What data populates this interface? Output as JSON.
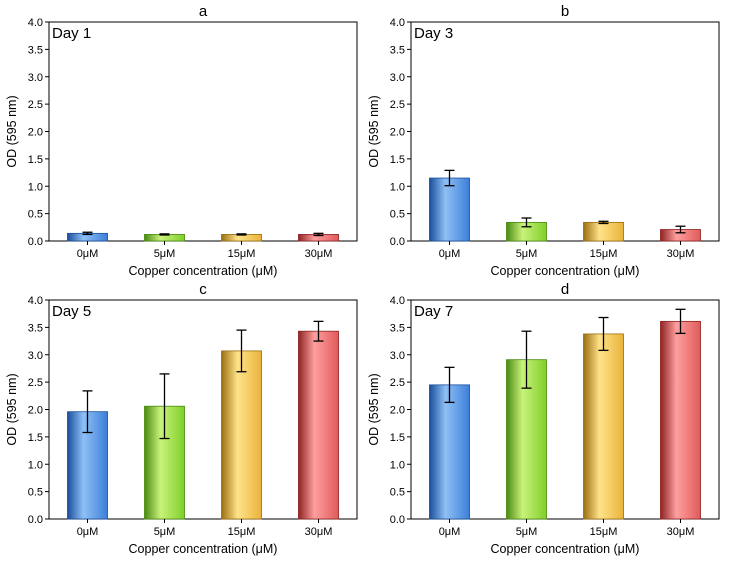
{
  "chart_data": [
    {
      "type": "bar",
      "panel": "a",
      "day_label": "Day 1",
      "categories": [
        "0μM",
        "5μM",
        "15μM",
        "30μM"
      ],
      "values": [
        0.14,
        0.12,
        0.12,
        0.12
      ],
      "errors": [
        0.02,
        0.01,
        0.01,
        0.02
      ],
      "xlabel": "Copper concentration (μM)",
      "ylabel": "OD (595 nm)",
      "ylim": [
        0,
        4.0
      ],
      "yticks": [
        "0.0",
        "0.5",
        "1.0",
        "1.5",
        "2.0",
        "2.5",
        "3.0",
        "3.5",
        "4.0"
      ]
    },
    {
      "type": "bar",
      "panel": "b",
      "day_label": "Day 3",
      "categories": [
        "0μM",
        "5μM",
        "15μM",
        "30μM"
      ],
      "values": [
        1.15,
        0.34,
        0.34,
        0.21
      ],
      "errors": [
        0.14,
        0.08,
        0.02,
        0.06
      ],
      "xlabel": "Copper concentration (μM)",
      "ylabel": "OD (595 nm)",
      "ylim": [
        0,
        4.0
      ],
      "yticks": [
        "0.0",
        "0.5",
        "1.0",
        "1.5",
        "2.0",
        "2.5",
        "3.0",
        "3.5",
        "4.0"
      ]
    },
    {
      "type": "bar",
      "panel": "c",
      "day_label": "Day 5",
      "categories": [
        "0μM",
        "5μM",
        "15μM",
        "30μM"
      ],
      "values": [
        1.96,
        2.06,
        3.07,
        3.43
      ],
      "errors": [
        0.38,
        0.59,
        0.38,
        0.18
      ],
      "xlabel": "Copper concentration (μM)",
      "ylabel": "OD (595 nm)",
      "ylim": [
        0,
        4.0
      ],
      "yticks": [
        "0.0",
        "0.5",
        "1.0",
        "1.5",
        "2.0",
        "2.5",
        "3.0",
        "3.5",
        "4.0"
      ]
    },
    {
      "type": "bar",
      "panel": "d",
      "day_label": "Day 7",
      "categories": [
        "0μM",
        "5μM",
        "15μM",
        "30μM"
      ],
      "values": [
        2.45,
        2.91,
        3.38,
        3.61
      ],
      "errors": [
        0.32,
        0.52,
        0.3,
        0.22
      ],
      "xlabel": "Copper concentration (μM)",
      "ylabel": "OD (595 nm)",
      "ylim": [
        0,
        4.0
      ],
      "yticks": [
        "0.0",
        "0.5",
        "1.0",
        "1.5",
        "2.0",
        "2.5",
        "3.0",
        "3.5",
        "4.0"
      ]
    }
  ],
  "bar_colors": [
    {
      "light": "#8fc0f5",
      "mid": "#3b7fd9",
      "dark": "#1a4f9c"
    },
    {
      "light": "#c9f27a",
      "mid": "#7fcf2a",
      "dark": "#4a8a12"
    },
    {
      "light": "#ffe38a",
      "mid": "#e9b33a",
      "dark": "#9c6f10"
    },
    {
      "light": "#ff9f9f",
      "mid": "#e05a5a",
      "dark": "#8f2323"
    }
  ],
  "grid": false,
  "legend": "none"
}
